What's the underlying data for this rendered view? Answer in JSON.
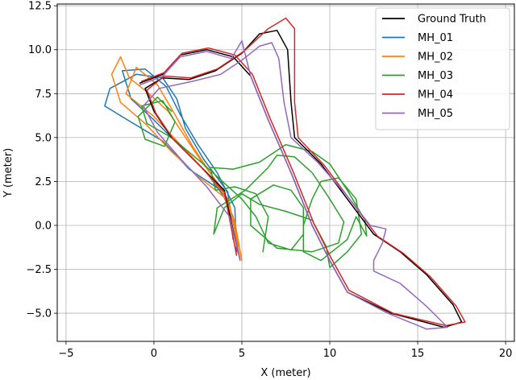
{
  "chart_data": {
    "type": "line",
    "title": "",
    "xlabel": "X (meter)",
    "ylabel": "Y (meter)",
    "xlim": [
      -5.5,
      20.5
    ],
    "ylim": [
      -6.6,
      12.6
    ],
    "xticks": [
      -5,
      0,
      5,
      10,
      15,
      20
    ],
    "yticks": [
      -5.0,
      -2.5,
      0.0,
      2.5,
      5.0,
      7.5,
      10.0,
      12.5
    ],
    "xtick_labels": [
      "−5",
      "0",
      "5",
      "10",
      "15",
      "20"
    ],
    "ytick_labels": [
      "−5.0",
      "−2.5",
      "0.0",
      "2.5",
      "5.0",
      "7.5",
      "10.0",
      "12.5"
    ],
    "grid": true,
    "legend_position": "top-right",
    "series": [
      {
        "name": "Ground Truth",
        "color": "#000000",
        "points": [
          [
            4.8,
            -1.6
          ],
          [
            4.0,
            2.0
          ],
          [
            2.5,
            3.5
          ],
          [
            1.0,
            5.0
          ],
          [
            0.0,
            6.5
          ],
          [
            -0.5,
            7.8
          ],
          [
            0.5,
            8.4
          ],
          [
            2.0,
            8.3
          ],
          [
            3.5,
            8.8
          ],
          [
            5.0,
            9.8
          ],
          [
            6.0,
            10.9
          ],
          [
            7.0,
            11.1
          ],
          [
            7.6,
            10.0
          ],
          [
            7.8,
            7.0
          ],
          [
            8.0,
            5.0
          ],
          [
            9.5,
            3.5
          ],
          [
            11.0,
            1.5
          ],
          [
            12.5,
            -0.5
          ],
          [
            14.0,
            -1.5
          ],
          [
            15.5,
            -2.8
          ],
          [
            17.0,
            -4.5
          ],
          [
            17.5,
            -5.5
          ],
          [
            16.5,
            -5.8
          ],
          [
            13.5,
            -5.0
          ],
          [
            11.0,
            -3.8
          ],
          [
            10.0,
            -2.0
          ],
          [
            9.0,
            0.0
          ],
          [
            7.8,
            3.0
          ],
          [
            6.5,
            6.0
          ],
          [
            5.5,
            8.5
          ],
          [
            4.5,
            9.6
          ],
          [
            3.0,
            10.0
          ],
          [
            1.5,
            9.7
          ],
          [
            0.5,
            8.6
          ],
          [
            -0.8,
            8.1
          ]
        ]
      },
      {
        "name": "MH_01",
        "color": "#1f77b4",
        "points": [
          [
            4.8,
            -1.6
          ],
          [
            4.5,
            0.5
          ],
          [
            3.8,
            2.0
          ],
          [
            2.0,
            3.2
          ],
          [
            0.5,
            4.8
          ],
          [
            -1.5,
            6.0
          ],
          [
            -2.8,
            6.8
          ],
          [
            -2.5,
            7.8
          ],
          [
            -1.0,
            8.6
          ],
          [
            0.5,
            8.4
          ],
          [
            1.3,
            7.2
          ],
          [
            1.8,
            5.5
          ],
          [
            2.8,
            3.8
          ],
          [
            4.2,
            1.9
          ],
          [
            4.5,
            -0.8
          ],
          [
            4.3,
            1.2
          ],
          [
            3.0,
            3.0
          ],
          [
            1.5,
            4.5
          ],
          [
            0.0,
            6.0
          ],
          [
            -1.3,
            7.2
          ],
          [
            -1.8,
            8.8
          ],
          [
            -0.5,
            8.9
          ],
          [
            0.7,
            7.9
          ],
          [
            1.5,
            6.3
          ],
          [
            2.5,
            4.6
          ],
          [
            3.6,
            3.0
          ],
          [
            4.6,
            1.0
          ],
          [
            4.7,
            -1.5
          ]
        ]
      },
      {
        "name": "MH_02",
        "color": "#ff7f0e",
        "points": [
          [
            5.0,
            -2.0
          ],
          [
            4.6,
            0.2
          ],
          [
            4.0,
            1.6
          ],
          [
            2.5,
            2.8
          ],
          [
            1.0,
            4.2
          ],
          [
            -0.5,
            5.8
          ],
          [
            -1.9,
            7.0
          ],
          [
            -2.4,
            8.6
          ],
          [
            -1.9,
            9.6
          ],
          [
            -1.4,
            8.4
          ],
          [
            -0.4,
            7.6
          ],
          [
            0.8,
            6.5
          ],
          [
            1.8,
            5.0
          ],
          [
            2.8,
            3.5
          ],
          [
            3.8,
            2.2
          ],
          [
            4.5,
            0.3
          ],
          [
            4.8,
            -1.2
          ],
          [
            4.2,
            1.5
          ],
          [
            3.0,
            3.0
          ],
          [
            1.5,
            4.6
          ],
          [
            0.0,
            6.2
          ],
          [
            -1.6,
            7.5
          ],
          [
            -1.0,
            9.0
          ],
          [
            0.2,
            8.0
          ],
          [
            1.2,
            6.3
          ],
          [
            2.2,
            4.5
          ],
          [
            3.2,
            3.0
          ],
          [
            4.3,
            1.2
          ],
          [
            4.9,
            -1.9
          ]
        ]
      },
      {
        "name": "MH_03",
        "color": "#2ca02c",
        "points": [
          [
            6.2,
            -1.5
          ],
          [
            6.5,
            0.5
          ],
          [
            5.8,
            1.8
          ],
          [
            4.6,
            2.2
          ],
          [
            3.5,
            2.0
          ],
          [
            3.2,
            3.3
          ],
          [
            4.5,
            3.2
          ],
          [
            6.0,
            3.6
          ],
          [
            7.5,
            4.6
          ],
          [
            9.0,
            4.2
          ],
          [
            10.0,
            3.5
          ],
          [
            11.0,
            2.0
          ],
          [
            12.0,
            0.3
          ],
          [
            12.1,
            -0.6
          ],
          [
            11.5,
            0.5
          ],
          [
            11.0,
            -0.8
          ],
          [
            9.5,
            -2.0
          ],
          [
            8.5,
            -1.5
          ],
          [
            8.5,
            0.0
          ],
          [
            9.0,
            1.5
          ],
          [
            9.5,
            2.5
          ],
          [
            10.5,
            2.7
          ],
          [
            11.5,
            1.5
          ],
          [
            11.8,
            -0.5
          ],
          [
            11.0,
            -1.5
          ],
          [
            10.0,
            -2.4
          ],
          [
            9.8,
            -1.2
          ],
          [
            9.0,
            0.3
          ],
          [
            7.5,
            0.8
          ],
          [
            6.0,
            1.2
          ],
          [
            5.0,
            1.8
          ],
          [
            4.0,
            1.0
          ],
          [
            3.4,
            -0.5
          ],
          [
            3.6,
            1.0
          ],
          [
            5.2,
            2.0
          ],
          [
            6.5,
            3.3
          ],
          [
            7.0,
            4.0
          ],
          [
            8.0,
            3.9
          ],
          [
            9.0,
            3.0
          ],
          [
            10.0,
            1.5
          ],
          [
            10.8,
            0.2
          ],
          [
            10.5,
            -1.0
          ],
          [
            9.0,
            -1.5
          ],
          [
            7.0,
            -1.3
          ],
          [
            5.5,
            0.0
          ],
          [
            5.5,
            1.5
          ],
          [
            6.8,
            2.3
          ],
          [
            7.8,
            2.0
          ],
          [
            8.5,
            1.0
          ],
          [
            8.5,
            -0.5
          ],
          [
            7.8,
            -1.4
          ],
          [
            6.5,
            -1.0
          ],
          [
            5.8,
            0.5
          ],
          [
            5.0,
            1.5
          ],
          [
            2.8,
            3.5
          ],
          [
            1.0,
            5.0
          ],
          [
            -0.4,
            5.8
          ],
          [
            -0.7,
            6.8
          ],
          [
            0.5,
            7.1
          ],
          [
            1.2,
            5.9
          ],
          [
            0.6,
            4.5
          ],
          [
            -0.5,
            4.9
          ],
          [
            -0.9,
            6.2
          ],
          [
            0.2,
            7.3
          ],
          [
            1.0,
            6.5
          ]
        ]
      },
      {
        "name": "MH_04",
        "color": "#d62728",
        "points": [
          [
            4.7,
            -1.7
          ],
          [
            4.0,
            1.9
          ],
          [
            2.6,
            3.4
          ],
          [
            1.1,
            4.9
          ],
          [
            0.1,
            6.4
          ],
          [
            -0.4,
            7.7
          ],
          [
            0.6,
            8.5
          ],
          [
            2.1,
            8.4
          ],
          [
            3.6,
            8.9
          ],
          [
            5.1,
            9.9
          ],
          [
            6.5,
            11.2
          ],
          [
            7.5,
            11.8
          ],
          [
            8.0,
            11.2
          ],
          [
            8.0,
            7.0
          ],
          [
            8.2,
            5.0
          ],
          [
            9.7,
            3.4
          ],
          [
            11.2,
            1.4
          ],
          [
            12.7,
            -0.6
          ],
          [
            14.2,
            -1.6
          ],
          [
            15.7,
            -2.9
          ],
          [
            17.2,
            -4.6
          ],
          [
            17.7,
            -5.5
          ],
          [
            16.6,
            -5.7
          ],
          [
            13.6,
            -5.0
          ],
          [
            11.1,
            -3.7
          ],
          [
            10.1,
            -1.9
          ],
          [
            9.1,
            0.1
          ],
          [
            7.9,
            3.1
          ],
          [
            6.6,
            6.1
          ],
          [
            5.6,
            8.6
          ],
          [
            4.6,
            9.7
          ],
          [
            3.1,
            10.1
          ],
          [
            1.6,
            9.8
          ],
          [
            0.6,
            8.7
          ],
          [
            -0.7,
            8.2
          ]
        ]
      },
      {
        "name": "MH_05",
        "color": "#9467bd",
        "points": [
          [
            4.9,
            -2.0
          ],
          [
            4.3,
            0.5
          ],
          [
            3.0,
            2.2
          ],
          [
            1.5,
            3.8
          ],
          [
            0.2,
            5.3
          ],
          [
            -0.6,
            6.8
          ],
          [
            0.3,
            7.8
          ],
          [
            2.2,
            8.2
          ],
          [
            3.8,
            8.6
          ],
          [
            5.0,
            9.4
          ],
          [
            6.0,
            10.2
          ],
          [
            6.7,
            10.4
          ],
          [
            7.1,
            9.5
          ],
          [
            7.4,
            7.0
          ],
          [
            7.8,
            5.0
          ],
          [
            9.3,
            3.6
          ],
          [
            10.9,
            1.8
          ],
          [
            12.3,
            0.0
          ],
          [
            13.2,
            -0.2
          ],
          [
            13.0,
            -1.0
          ],
          [
            12.5,
            -2.0
          ],
          [
            12.5,
            -2.6
          ],
          [
            14.0,
            -3.3
          ],
          [
            15.5,
            -4.6
          ],
          [
            16.7,
            -5.8
          ],
          [
            15.5,
            -5.9
          ],
          [
            13.3,
            -5.0
          ],
          [
            11.0,
            -3.8
          ],
          [
            10.0,
            -2.0
          ],
          [
            9.0,
            0.0
          ],
          [
            7.8,
            3.0
          ],
          [
            6.5,
            6.0
          ],
          [
            5.5,
            8.5
          ],
          [
            5.0,
            10.5
          ],
          [
            4.4,
            9.5
          ],
          [
            3.0,
            9.9
          ],
          [
            1.5,
            9.6
          ],
          [
            0.5,
            8.5
          ],
          [
            -0.8,
            8.0
          ]
        ]
      }
    ]
  }
}
